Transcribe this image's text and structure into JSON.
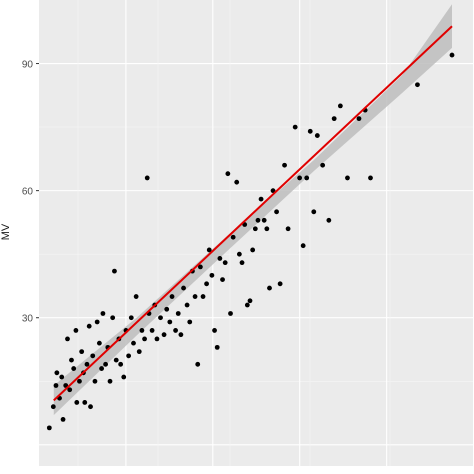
{
  "chart_data": {
    "type": "scatter",
    "title": "",
    "xlabel": "",
    "ylabel": "MV",
    "xlim": [
      0,
      100
    ],
    "ylim": [
      -5,
      105
    ],
    "y_ticks": [
      30,
      60,
      90
    ],
    "y_tick_labels": [
      "30",
      "60",
      "90"
    ],
    "grid": true,
    "legend": "none",
    "colors": {
      "panel": "#ebebeb",
      "grid_major": "#ffffff",
      "points": "#000000",
      "fit_line": "#e00000",
      "confidence_band": "#bdbdbd"
    },
    "fit_line": {
      "x": [
        1.3,
        91.2
      ],
      "y": [
        10.5,
        98.8
      ]
    },
    "confidence_band": {
      "x": [
        1.3,
        20,
        40,
        60,
        80,
        91.2
      ],
      "upper": [
        14.0,
        30.0,
        48.9,
        67.2,
        87.3,
        104.0
      ],
      "lower": [
        7.0,
        25.8,
        45.3,
        64.6,
        83.1,
        93.7
      ]
    },
    "points": [
      [
        0.3,
        4
      ],
      [
        1.2,
        9
      ],
      [
        2.0,
        17
      ],
      [
        2.6,
        11
      ],
      [
        1.8,
        14
      ],
      [
        3.1,
        16
      ],
      [
        3.4,
        6
      ],
      [
        4.0,
        14
      ],
      [
        4.4,
        25
      ],
      [
        4.9,
        13
      ],
      [
        5.3,
        20
      ],
      [
        5.8,
        18
      ],
      [
        6.3,
        27
      ],
      [
        6.5,
        10
      ],
      [
        7.1,
        15
      ],
      [
        7.6,
        22
      ],
      [
        8.0,
        17
      ],
      [
        8.3,
        10
      ],
      [
        8.8,
        19
      ],
      [
        9.3,
        28
      ],
      [
        9.6,
        9
      ],
      [
        10.1,
        21
      ],
      [
        10.6,
        15
      ],
      [
        11.1,
        29
      ],
      [
        11.6,
        24
      ],
      [
        12.1,
        18
      ],
      [
        12.4,
        31
      ],
      [
        13.0,
        19
      ],
      [
        13.5,
        23
      ],
      [
        14.0,
        15
      ],
      [
        14.6,
        30
      ],
      [
        15.0,
        41
      ],
      [
        15.4,
        20
      ],
      [
        16.0,
        25
      ],
      [
        16.4,
        19
      ],
      [
        17.1,
        16
      ],
      [
        17.6,
        27
      ],
      [
        18.2,
        21
      ],
      [
        18.8,
        30
      ],
      [
        19.3,
        24
      ],
      [
        19.9,
        35
      ],
      [
        20.6,
        22
      ],
      [
        21.2,
        27
      ],
      [
        21.8,
        25
      ],
      [
        22.4,
        63
      ],
      [
        22.8,
        31
      ],
      [
        23.5,
        27
      ],
      [
        24.1,
        33
      ],
      [
        24.6,
        25
      ],
      [
        25.4,
        30
      ],
      [
        26.2,
        26
      ],
      [
        26.8,
        32
      ],
      [
        27.5,
        29
      ],
      [
        28.0,
        35
      ],
      [
        28.8,
        27
      ],
      [
        29.4,
        31
      ],
      [
        30.0,
        26
      ],
      [
        30.6,
        37
      ],
      [
        31.4,
        33
      ],
      [
        32.0,
        29
      ],
      [
        32.6,
        41
      ],
      [
        33.2,
        35
      ],
      [
        33.8,
        19
      ],
      [
        34.4,
        42
      ],
      [
        35.0,
        35
      ],
      [
        35.8,
        38
      ],
      [
        36.4,
        46
      ],
      [
        37.0,
        40
      ],
      [
        37.6,
        27
      ],
      [
        38.2,
        23
      ],
      [
        38.8,
        44
      ],
      [
        39.4,
        39
      ],
      [
        40.0,
        43
      ],
      [
        40.6,
        64
      ],
      [
        41.2,
        31
      ],
      [
        41.8,
        49
      ],
      [
        42.6,
        62
      ],
      [
        43.2,
        45
      ],
      [
        43.8,
        43
      ],
      [
        44.4,
        52
      ],
      [
        45.0,
        33
      ],
      [
        45.6,
        34
      ],
      [
        46.2,
        46
      ],
      [
        46.8,
        51
      ],
      [
        47.4,
        53
      ],
      [
        48.1,
        58
      ],
      [
        48.8,
        53
      ],
      [
        49.4,
        51
      ],
      [
        50.0,
        37
      ],
      [
        50.8,
        60
      ],
      [
        51.6,
        55
      ],
      [
        52.4,
        38
      ],
      [
        53.4,
        66
      ],
      [
        54.2,
        51
      ],
      [
        55.8,
        75
      ],
      [
        56.8,
        63
      ],
      [
        57.6,
        47
      ],
      [
        58.4,
        63
      ],
      [
        59.2,
        74
      ],
      [
        60.0,
        55
      ],
      [
        60.8,
        73
      ],
      [
        62.0,
        66
      ],
      [
        63.4,
        53
      ],
      [
        64.6,
        77
      ],
      [
        66.0,
        80
      ],
      [
        67.6,
        63
      ],
      [
        70.2,
        77
      ],
      [
        71.6,
        79
      ],
      [
        72.8,
        63
      ],
      [
        83.4,
        85
      ],
      [
        91.2,
        92
      ]
    ]
  }
}
